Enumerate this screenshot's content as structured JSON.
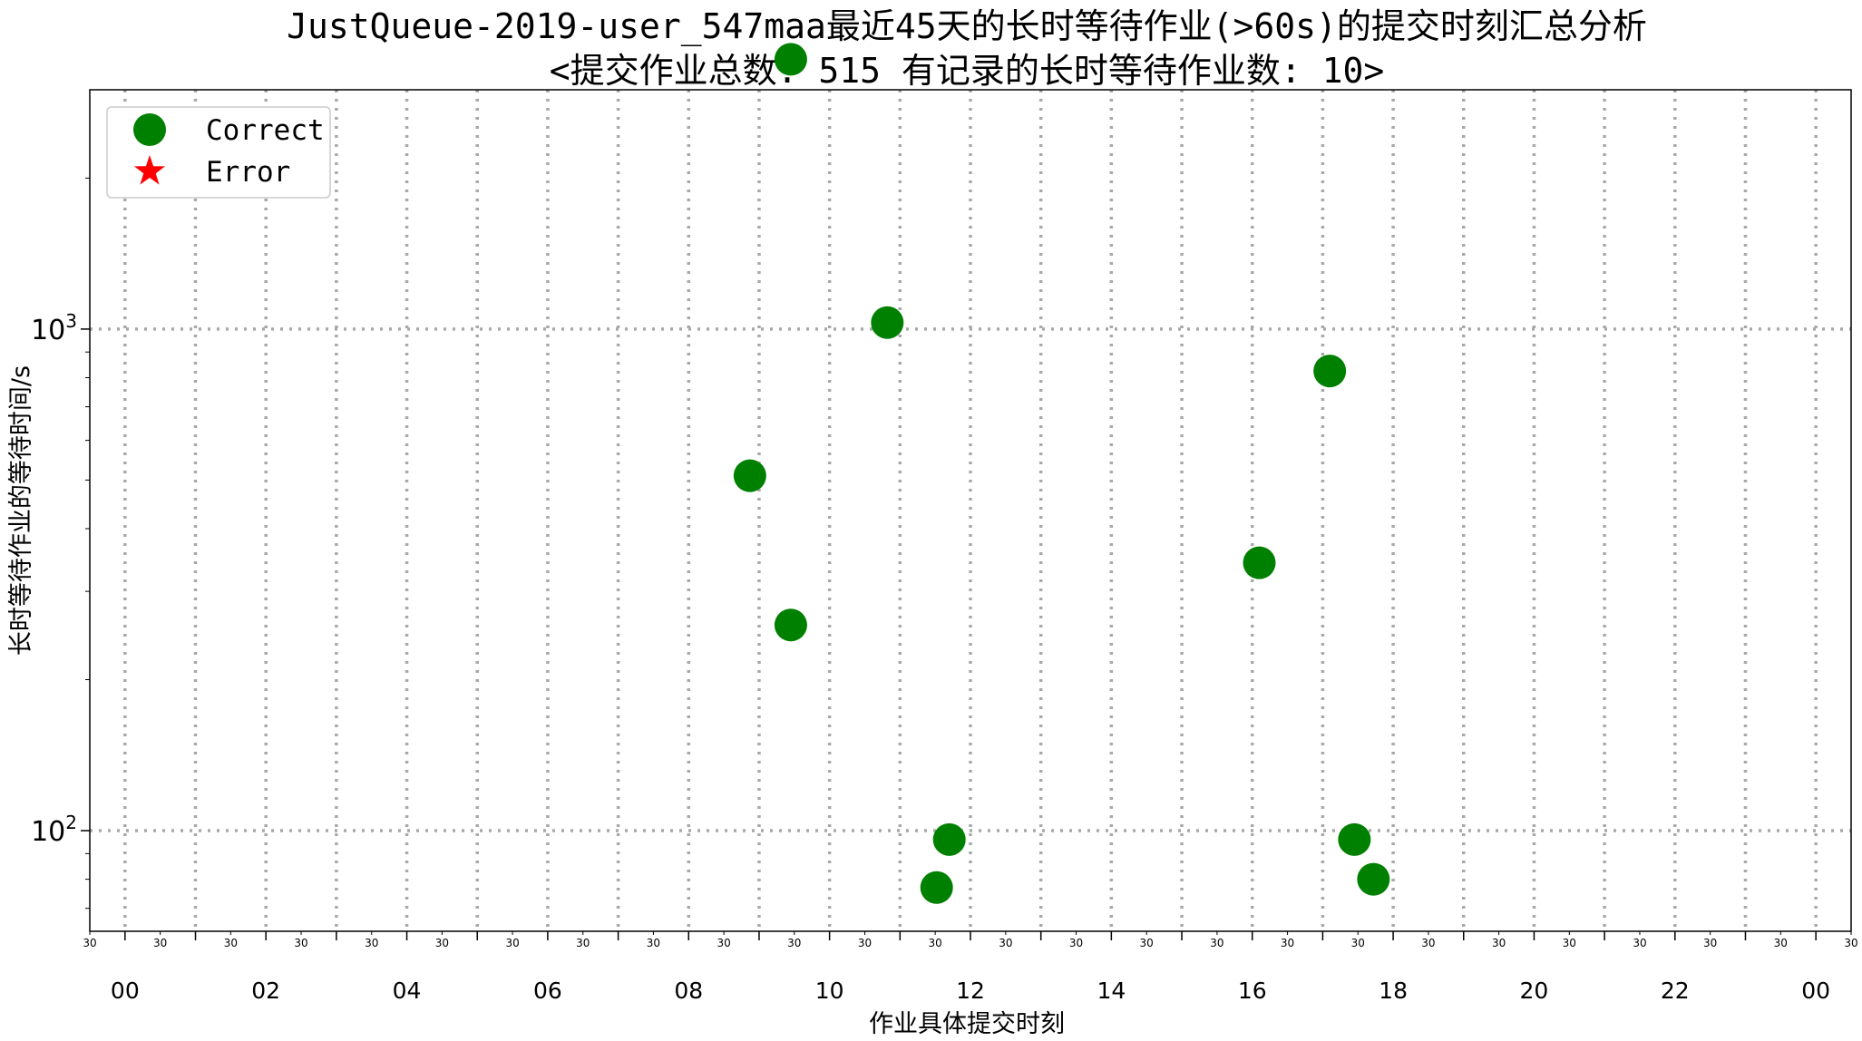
{
  "chart_data": {
    "type": "scatter",
    "title": "JustQueue-2019-user_547maa最近45天的长时等待作业(>60s)的提交时刻汇总分析",
    "subtitle": "<提交作业总数: 515  有记录的长时等待作业数: 10>",
    "xlabel": "作业具体提交时刻",
    "ylabel": "长时等待作业的等待时间/s",
    "x_unit": "hour of day",
    "xlim": [
      -0.5,
      24.5
    ],
    "ylim": [
      63,
      3000
    ],
    "yscale": "log",
    "grid": true,
    "legend_position": "top-left",
    "x_major_ticks": [
      {
        "x": 0,
        "label": "00"
      },
      {
        "x": 2,
        "label": "02"
      },
      {
        "x": 4,
        "label": "04"
      },
      {
        "x": 6,
        "label": "06"
      },
      {
        "x": 8,
        "label": "08"
      },
      {
        "x": 10,
        "label": "10"
      },
      {
        "x": 12,
        "label": "12"
      },
      {
        "x": 14,
        "label": "14"
      },
      {
        "x": 16,
        "label": "16"
      },
      {
        "x": 18,
        "label": "18"
      },
      {
        "x": 20,
        "label": "20"
      },
      {
        "x": 22,
        "label": "22"
      },
      {
        "x": 24,
        "label": "00"
      }
    ],
    "x_minor_ticks": [
      {
        "x": -0.5,
        "label": "30"
      },
      {
        "x": 0.5,
        "label": "30"
      },
      {
        "x": 1.5,
        "label": "30"
      },
      {
        "x": 2.5,
        "label": "30"
      },
      {
        "x": 3.5,
        "label": "30"
      },
      {
        "x": 4.5,
        "label": "30"
      },
      {
        "x": 5.5,
        "label": "30"
      },
      {
        "x": 6.5,
        "label": "30"
      },
      {
        "x": 7.5,
        "label": "30"
      },
      {
        "x": 8.5,
        "label": "30"
      },
      {
        "x": 9.5,
        "label": "30"
      },
      {
        "x": 10.5,
        "label": "30"
      },
      {
        "x": 11.5,
        "label": "30"
      },
      {
        "x": 12.5,
        "label": "30"
      },
      {
        "x": 13.5,
        "label": "30"
      },
      {
        "x": 14.5,
        "label": "30"
      },
      {
        "x": 15.5,
        "label": "30"
      },
      {
        "x": 16.5,
        "label": "30"
      },
      {
        "x": 17.5,
        "label": "30"
      },
      {
        "x": 18.5,
        "label": "30"
      },
      {
        "x": 19.5,
        "label": "30"
      },
      {
        "x": 20.5,
        "label": "30"
      },
      {
        "x": 21.5,
        "label": "30"
      },
      {
        "x": 22.5,
        "label": "30"
      },
      {
        "x": 23.5,
        "label": "30"
      },
      {
        "x": 24.5,
        "label": "30"
      }
    ],
    "y_ticks": [
      {
        "y": 100,
        "base": "10",
        "exp": "2"
      },
      {
        "y": 1000,
        "base": "10",
        "exp": "3"
      }
    ],
    "series": [
      {
        "name": "Correct",
        "marker": "circle",
        "color": "#008000",
        "points": [
          {
            "x": 9.45,
            "y": 3450
          },
          {
            "x": 10.82,
            "y": 1030
          },
          {
            "x": 8.87,
            "y": 510
          },
          {
            "x": 9.45,
            "y": 257
          },
          {
            "x": 11.7,
            "y": 96
          },
          {
            "x": 11.52,
            "y": 77
          },
          {
            "x": 16.1,
            "y": 342
          },
          {
            "x": 17.1,
            "y": 825
          },
          {
            "x": 17.45,
            "y": 96
          },
          {
            "x": 17.72,
            "y": 80
          }
        ]
      },
      {
        "name": "Error",
        "marker": "star",
        "color": "#ff0000",
        "points": []
      }
    ]
  }
}
